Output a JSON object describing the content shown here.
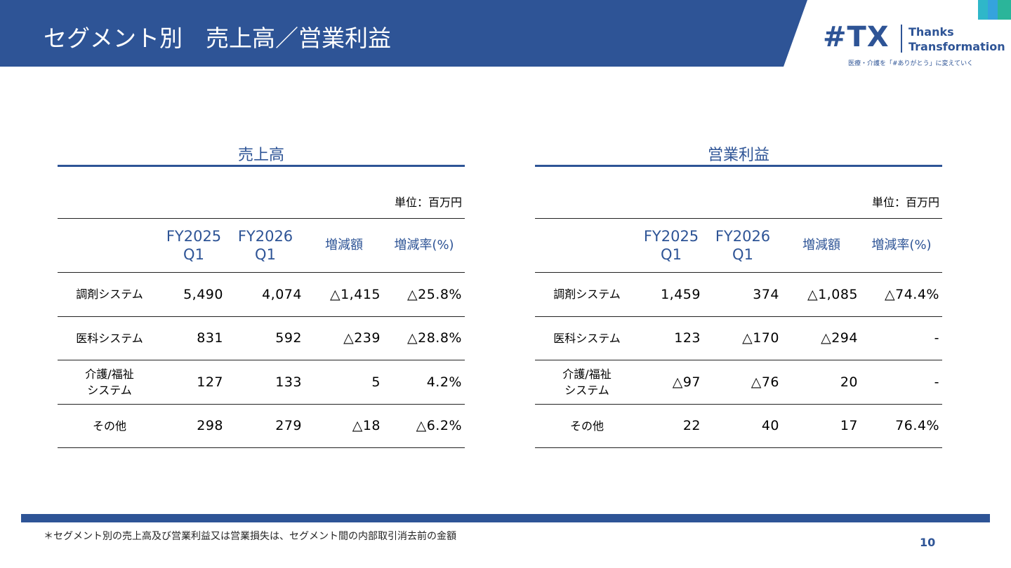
{
  "header": {
    "title": "セグメント別　売上高／営業利益"
  },
  "logo": {
    "mark": "#TX",
    "name_line1": "Thanks",
    "name_line2": "Transformation",
    "tagline": "医療・介護を「#ありがとう」に変えていく"
  },
  "tables": [
    {
      "title": "売上高",
      "unit": "単位：百万円",
      "columns": [
        "",
        "FY2025\nQ1",
        "FY2026\nQ1",
        "増減額",
        "増減率(%)"
      ],
      "rows": [
        [
          "調剤システム",
          "5,490",
          "4,074",
          "△1,415",
          "△25.8%"
        ],
        [
          "医科システム",
          "831",
          "592",
          "△239",
          "△28.8%"
        ],
        [
          "介護/福祉\nシステム",
          "127",
          "133",
          "5",
          "4.2%"
        ],
        [
          "その他",
          "298",
          "279",
          "△18",
          "△6.2%"
        ]
      ]
    },
    {
      "title": "営業利益",
      "unit": "単位：百万円",
      "columns": [
        "",
        "FY2025\nQ1",
        "FY2026\nQ1",
        "増減額",
        "増減率(%)"
      ],
      "rows": [
        [
          "調剤システム",
          "1,459",
          "374",
          "△1,085",
          "△74.4%"
        ],
        [
          "医科システム",
          "123",
          "△170",
          "△294",
          "-"
        ],
        [
          "介護/福祉\nシステム",
          "△97",
          "△76",
          "20",
          "-"
        ],
        [
          "その他",
          "22",
          "40",
          "17",
          "76.4%"
        ]
      ]
    }
  ],
  "footer": {
    "note": "＊セグメント別の売上高及び営業利益又は営業損失は、セグメント間の内部取引消去前の金額",
    "page": "10"
  }
}
